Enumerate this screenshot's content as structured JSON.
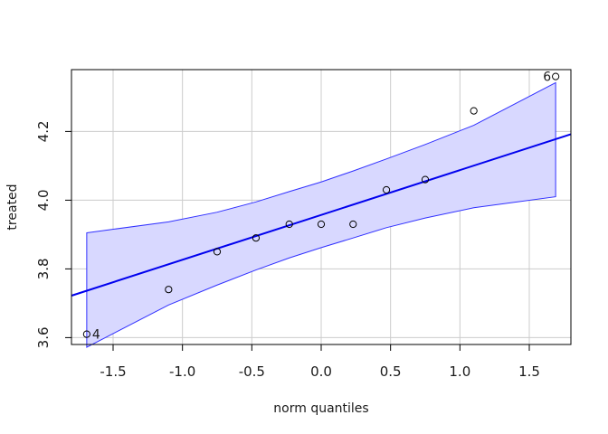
{
  "chart_data": {
    "type": "scatter",
    "title": "",
    "xlabel": "norm quantiles",
    "ylabel": "treated",
    "xlim": [
      -1.8,
      1.8
    ],
    "ylim": [
      3.58,
      4.38
    ],
    "xticks": [
      -1.5,
      -1.0,
      -0.5,
      0.0,
      0.5,
      1.0,
      1.5
    ],
    "xtick_labels": [
      "-1.5",
      "-1.0",
      "-0.5",
      "0.0",
      "0.5",
      "1.0",
      "1.5"
    ],
    "yticks": [
      3.6,
      3.8,
      4.0,
      4.2
    ],
    "ytick_labels": [
      "3.6",
      "3.8",
      "4.0",
      "4.2"
    ],
    "grid": true,
    "points": [
      {
        "x": -1.69,
        "y": 3.61,
        "label": "4"
      },
      {
        "x": -1.1,
        "y": 3.74
      },
      {
        "x": -0.75,
        "y": 3.85
      },
      {
        "x": -0.47,
        "y": 3.89
      },
      {
        "x": -0.23,
        "y": 3.93
      },
      {
        "x": 0.0,
        "y": 3.93
      },
      {
        "x": 0.23,
        "y": 3.93
      },
      {
        "x": 0.47,
        "y": 4.03
      },
      {
        "x": 0.75,
        "y": 4.06
      },
      {
        "x": 1.1,
        "y": 4.26
      },
      {
        "x": 1.69,
        "y": 4.36,
        "label": "6"
      }
    ],
    "reference_line": {
      "intercept": 3.957,
      "slope": 0.1305
    },
    "envelope": {
      "x": [
        -1.69,
        -1.1,
        -0.75,
        -0.47,
        -0.23,
        0.0,
        0.23,
        0.47,
        0.75,
        1.1,
        1.69
      ],
      "upper": [
        3.905,
        3.937,
        3.965,
        3.995,
        4.025,
        4.053,
        4.085,
        4.12,
        4.162,
        4.218,
        4.342
      ],
      "lower": [
        3.572,
        3.695,
        3.753,
        3.797,
        3.832,
        3.862,
        3.89,
        3.92,
        3.948,
        3.978,
        4.01
      ]
    },
    "colors": {
      "line": "#0000ee",
      "envelope_fill": "#d8d8ff",
      "envelope_edge": "#3030ff",
      "points": "#000000",
      "grid": "#cccccc"
    }
  }
}
